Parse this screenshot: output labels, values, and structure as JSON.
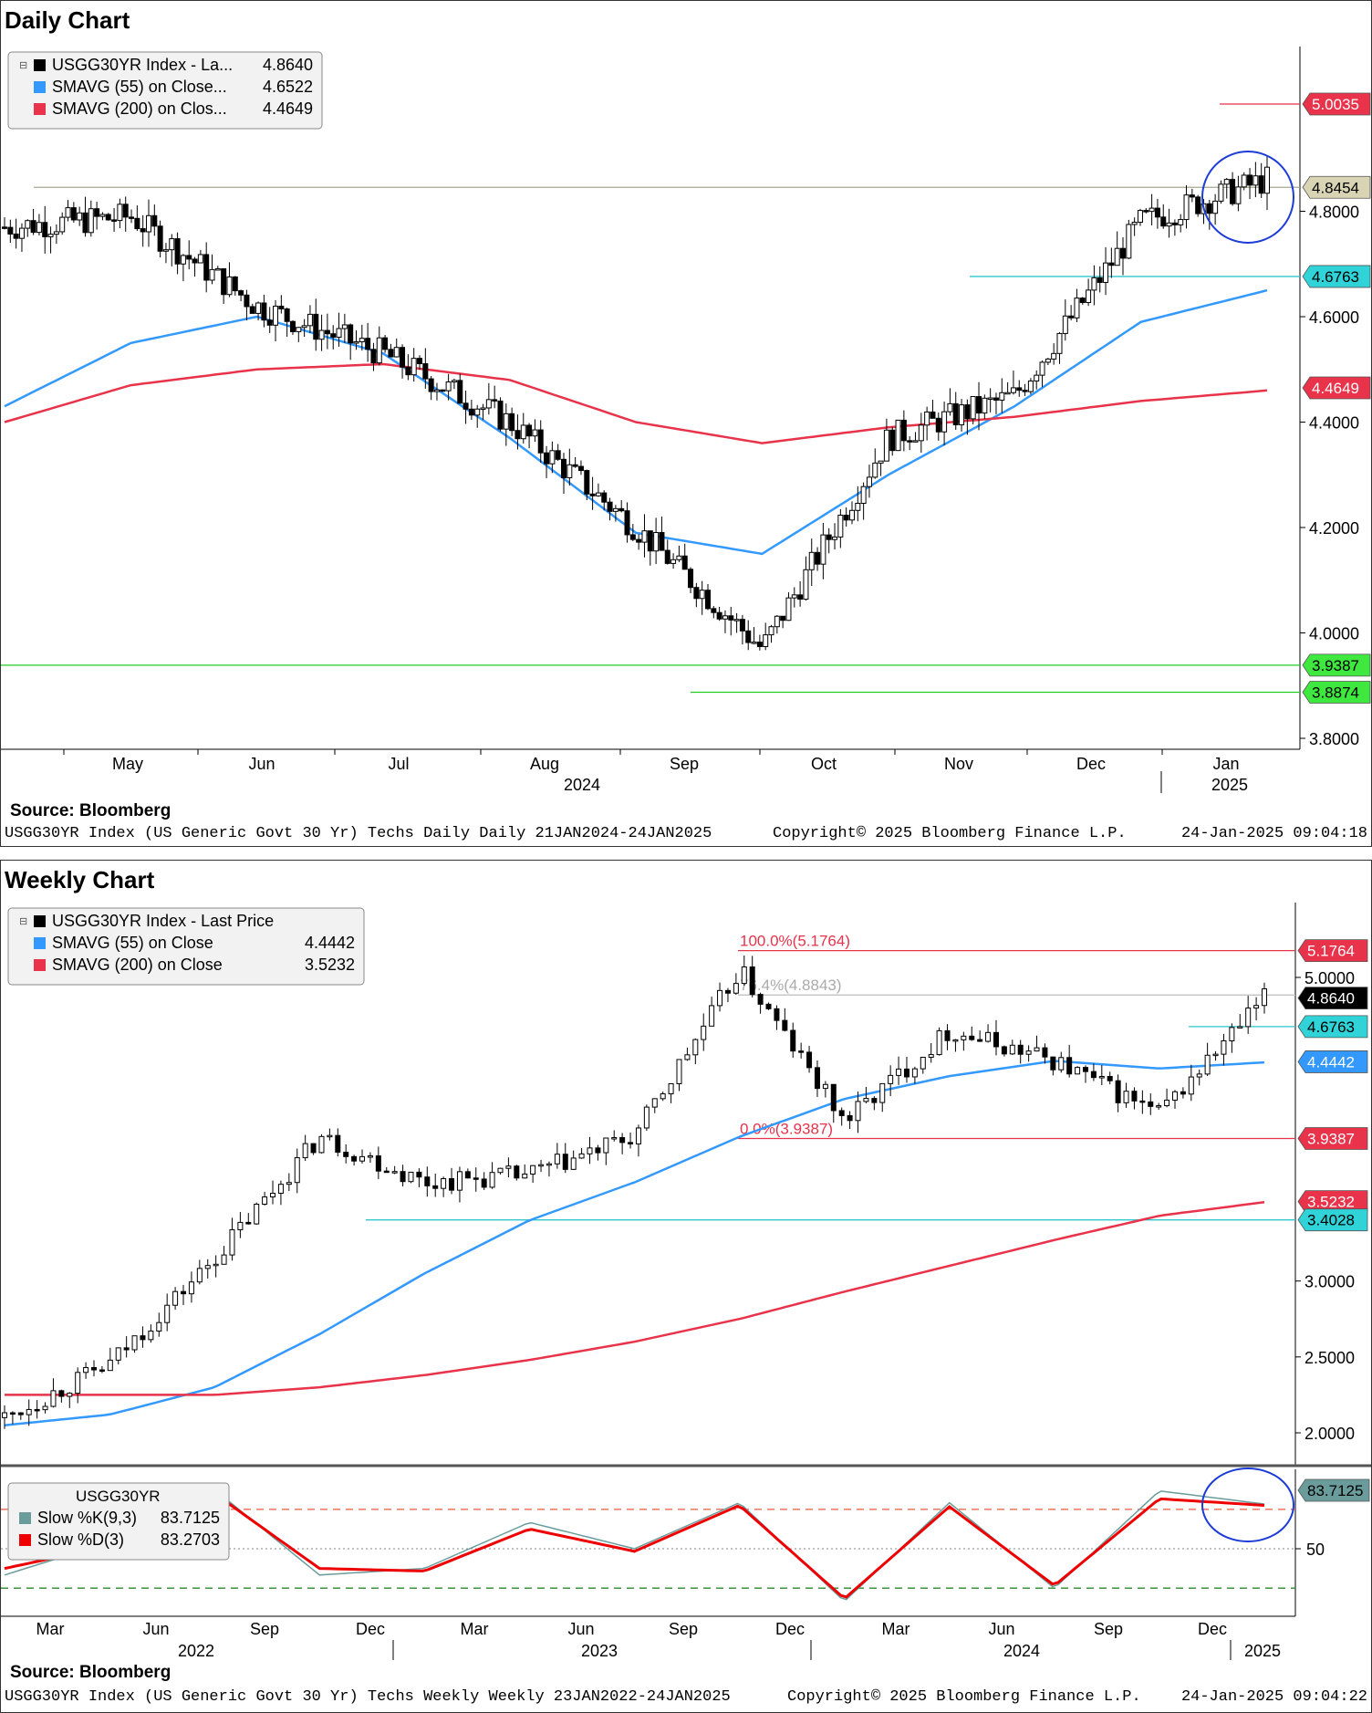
{
  "daily": {
    "title": "Daily Chart",
    "source": "Source: Bloomberg",
    "footer_left": "USGG30YR Index (US Generic Govt 30 Yr) Techs Daily  Daily 21JAN2024-24JAN2025",
    "footer_mid": "Copyright© 2025 Bloomberg Finance L.P.",
    "footer_right": "24-Jan-2025 09:04:18",
    "legend": [
      {
        "label": "USGG30YR Index - La...",
        "value": "4.8640",
        "color": "#000000"
      },
      {
        "label": "SMAVG (55)  on Close...",
        "value": "4.6522",
        "color": "#3399ff"
      },
      {
        "label": "SMAVG (200)  on Clos...",
        "value": "4.4649",
        "color": "#e8334a"
      }
    ],
    "x_labels": [
      "May",
      "Jun",
      "Jul",
      "Aug",
      "Sep",
      "Oct",
      "Nov",
      "Dec",
      "Jan"
    ],
    "year_labels": [
      "2024",
      "2025"
    ],
    "tags": [
      {
        "text": "5.0035",
        "bg": "#e8334a",
        "fg": "#ffffff"
      },
      {
        "text": "4.8454",
        "bg": "#d8d4b4",
        "fg": "#000000"
      },
      {
        "text": "4.6763",
        "bg": "#2fd3d8",
        "fg": "#000000"
      },
      {
        "text": "4.4649",
        "bg": "#e8334a",
        "fg": "#ffffff"
      },
      {
        "text": "3.9387",
        "bg": "#3fe83f",
        "fg": "#000000"
      },
      {
        "text": "3.8874",
        "bg": "#3fe83f",
        "fg": "#000000"
      }
    ]
  },
  "weekly": {
    "title": "Weekly Chart",
    "source": "Source: Bloomberg",
    "footer_left": "USGG30YR Index (US Generic Govt 30 Yr) Techs Weekly  Weekly 23JAN2022-24JAN2025",
    "footer_mid": "Copyright© 2025 Bloomberg Finance L.P.",
    "footer_right": "24-Jan-2025 09:04:22",
    "legend": [
      {
        "label": "USGG30YR Index - Last Price",
        "value": "",
        "color": "#000000"
      },
      {
        "label": "SMAVG (55)  on Close",
        "value": "4.4442",
        "color": "#3399ff"
      },
      {
        "label": "SMAVG (200)  on Close",
        "value": "3.5232",
        "color": "#e8334a"
      }
    ],
    "fib_high": "100.0%(5.1764)",
    "fib_mid": "76.4%(4.8843)",
    "fib_low": "0.0%(3.9387)",
    "x_labels": [
      "Mar",
      "Jun",
      "Sep",
      "Dec",
      "Mar",
      "Jun",
      "Sep",
      "Dec",
      "Mar",
      "Jun",
      "Sep",
      "Dec"
    ],
    "year_labels": [
      "2022",
      "2023",
      "2024",
      "2025"
    ],
    "tags": [
      {
        "text": "5.1764",
        "bg": "#e8334a",
        "fg": "#ffffff"
      },
      {
        "text": "4.8640",
        "bg": "#000000",
        "fg": "#ffffff"
      },
      {
        "text": "4.6763",
        "bg": "#2fd3d8",
        "fg": "#000000"
      },
      {
        "text": "4.4442",
        "bg": "#3399ff",
        "fg": "#ffffff"
      },
      {
        "text": "3.9387",
        "bg": "#e8334a",
        "fg": "#ffffff"
      },
      {
        "text": "3.5232",
        "bg": "#e8334a",
        "fg": "#ffffff"
      },
      {
        "text": "3.4028",
        "bg": "#2fd3d8",
        "fg": "#000000"
      }
    ],
    "stoch": {
      "title": "USGG30YR",
      "legend": [
        {
          "label": "Slow %K(9,3)",
          "value": "83.7125",
          "color": "#6a9c9c"
        },
        {
          "label": "Slow %D(3)",
          "value": "83.2703",
          "color": "#ee0000"
        }
      ],
      "tag": "83.7125",
      "axis_label": "50"
    }
  },
  "chart_data": [
    {
      "type": "line",
      "title": "Daily Chart",
      "xlabel": "",
      "ylabel": "",
      "ylim": [
        3.78,
        5.1
      ],
      "y_ticks": [
        "4.8000",
        "4.6000",
        "4.4000",
        "4.2000",
        "4.0000",
        "3.8000"
      ],
      "x_ticks": [
        "May",
        "Jun",
        "Jul",
        "Aug",
        "Sep",
        "Oct",
        "Nov",
        "Dec",
        "Jan"
      ],
      "x_dates": [
        "2024-04-01",
        "2024-05-01",
        "2024-06-01",
        "2024-07-01",
        "2024-08-01",
        "2024-09-01",
        "2024-10-01",
        "2024-11-01",
        "2024-12-01",
        "2025-01-01",
        "2025-01-24"
      ],
      "series": [
        {
          "name": "USGG30YR Index - La...",
          "values": [
            4.77,
            4.79,
            4.62,
            4.53,
            4.4,
            4.2,
            3.97,
            4.37,
            4.45,
            4.78,
            4.86
          ]
        },
        {
          "name": "SMAVG (55)  on Close...",
          "values": [
            4.43,
            4.55,
            4.6,
            4.53,
            4.37,
            4.19,
            4.15,
            4.3,
            4.43,
            4.59,
            4.65
          ]
        },
        {
          "name": "SMAVG (200)  on Clos...",
          "values": [
            4.4,
            4.47,
            4.5,
            4.51,
            4.48,
            4.4,
            4.36,
            4.39,
            4.41,
            4.44,
            4.46
          ]
        }
      ],
      "levels": [
        5.0035,
        4.8454,
        4.6763,
        3.9387,
        3.8874
      ],
      "legend_position": "top-left"
    },
    {
      "type": "line",
      "title": "Weekly Chart",
      "xlabel": "",
      "ylabel": "",
      "ylim": [
        1.75,
        5.35
      ],
      "y_ticks": [
        "5.0000",
        "3.0000",
        "2.5000",
        "2.0000"
      ],
      "x_ticks": [
        "Mar",
        "Jun",
        "Sep",
        "Dec",
        "Mar",
        "Jun",
        "Sep",
        "Dec",
        "Mar",
        "Jun",
        "Sep",
        "Dec"
      ],
      "x_dates": [
        "2022-01-23",
        "2022-04-01",
        "2022-07-01",
        "2022-10-01",
        "2023-01-01",
        "2023-04-01",
        "2023-07-01",
        "2023-10-01",
        "2024-01-01",
        "2024-04-01",
        "2024-07-01",
        "2024-10-01",
        "2025-01-24"
      ],
      "series": [
        {
          "name": "USGG30YR Index - Last Price",
          "values": [
            2.1,
            2.45,
            3.15,
            3.95,
            3.65,
            3.7,
            3.95,
            5.05,
            4.05,
            4.65,
            4.45,
            4.1,
            4.86
          ]
        },
        {
          "name": "SMAVG (55)  on Close",
          "values": [
            2.05,
            2.12,
            2.3,
            2.65,
            3.05,
            3.4,
            3.65,
            3.95,
            4.2,
            4.35,
            4.45,
            4.4,
            4.44
          ]
        },
        {
          "name": "SMAVG (200)  on Close",
          "values": [
            2.25,
            2.25,
            2.25,
            2.3,
            2.38,
            2.48,
            2.6,
            2.75,
            2.93,
            3.1,
            3.27,
            3.43,
            3.52
          ]
        }
      ],
      "levels": [
        5.1764,
        4.8843,
        4.6763,
        3.9387,
        3.4028
      ],
      "legend_position": "top-left"
    },
    {
      "type": "line",
      "title": "USGG30YR",
      "ylim": [
        0,
        100
      ],
      "y_ticks": [
        "50"
      ],
      "series": [
        {
          "name": "Slow %K(9,3)",
          "values": [
            30,
            55,
            95,
            30,
            35,
            70,
            50,
            85,
            10,
            85,
            20,
            94,
            84
          ]
        },
        {
          "name": "Slow %D(3)",
          "values": [
            35,
            52,
            92,
            35,
            33,
            65,
            48,
            83,
            12,
            82,
            22,
            88,
            83
          ]
        }
      ],
      "levels": [
        80,
        20
      ]
    }
  ]
}
